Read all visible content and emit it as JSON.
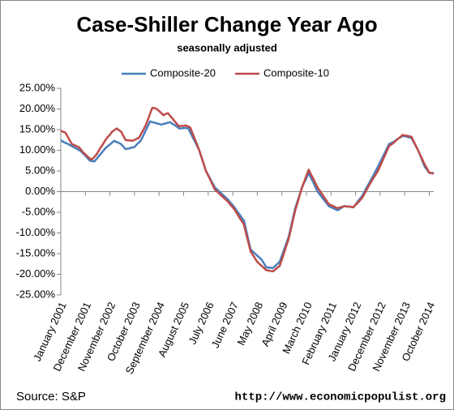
{
  "chart_data": {
    "type": "line",
    "title": "Case-Shiller Change Year Ago",
    "subtitle": "seasonally adjusted",
    "source": "Source: S&P",
    "url": "http://www.economicpopulist.org",
    "legend": "top",
    "grid": false,
    "categories": [
      "January 2001",
      null,
      null,
      null,
      null,
      null,
      null,
      null,
      null,
      null,
      null,
      "December 2001",
      null,
      null,
      null,
      null,
      null,
      null,
      null,
      null,
      null,
      null,
      "November 2002",
      null,
      null,
      null,
      null,
      null,
      null,
      null,
      null,
      null,
      null,
      "October 2003",
      null,
      null,
      null,
      null,
      null,
      null,
      null,
      null,
      null,
      null,
      "September 2004",
      null,
      null,
      null,
      null,
      null,
      null,
      null,
      null,
      null,
      null,
      "August 2005",
      null,
      null,
      null,
      null,
      null,
      null,
      null,
      null,
      null,
      null,
      "July 2006",
      null,
      null,
      null,
      null,
      null,
      null,
      null,
      null,
      null,
      null,
      "June 2007",
      null,
      null,
      null,
      null,
      null,
      null,
      null,
      null,
      null,
      null,
      "May 2008",
      null,
      null,
      null,
      null,
      null,
      null,
      null,
      null,
      null,
      null,
      "April 2009",
      null,
      null,
      null,
      null,
      null,
      null,
      null,
      null,
      null,
      null,
      "March 2010",
      null,
      null,
      null,
      null,
      null,
      null,
      null,
      null,
      null,
      null,
      "February 2011",
      null,
      null,
      null,
      null,
      null,
      null,
      null,
      null,
      null,
      null,
      "January 2012",
      null,
      null,
      null,
      null,
      null,
      null,
      null,
      null,
      null,
      null,
      "December 2012",
      null,
      null,
      null,
      null,
      null,
      null,
      null,
      null,
      null,
      null,
      "November 2013",
      null,
      null,
      null,
      null,
      null,
      null,
      null,
      null,
      null,
      null,
      "October 2014",
      null,
      null
    ],
    "series": [
      {
        "name": "Composite-20",
        "color": "#4a7ebb",
        "values": [
          12.4,
          12.1,
          11.8,
          11.6,
          11.3,
          11.0,
          10.7,
          10.4,
          10.1,
          9.8,
          9.2,
          8.7,
          8.1,
          7.5,
          7.4,
          7.3,
          7.9,
          8.6,
          9.2,
          9.9,
          10.5,
          11.0,
          11.4,
          11.9,
          12.3,
          12.0,
          11.8,
          11.5,
          10.9,
          10.3,
          10.4,
          10.5,
          10.7,
          10.8,
          11.4,
          11.9,
          12.5,
          13.6,
          14.8,
          15.9,
          17.0,
          16.8,
          16.7,
          16.5,
          16.4,
          16.2,
          16.4,
          16.5,
          16.7,
          16.8,
          16.4,
          16.1,
          15.7,
          15.3,
          15.3,
          15.4,
          15.4,
          15.4,
          14.3,
          13.2,
          12.2,
          11.1,
          10.0,
          8.3,
          6.7,
          5.0,
          4.0,
          3.0,
          2.0,
          1.0,
          0.5,
          0.0,
          -0.5,
          -1.0,
          -1.5,
          -2.0,
          -2.7,
          -3.3,
          -4.0,
          -4.8,
          -5.5,
          -6.3,
          -7.0,
          -9.3,
          -11.7,
          -14.0,
          -14.5,
          -15.0,
          -15.5,
          -16.0,
          -16.5,
          -17.4,
          -18.3,
          -18.4,
          -18.4,
          -18.5,
          -18.0,
          -17.5,
          -17.0,
          -15.5,
          -14.0,
          -12.5,
          -11.0,
          -8.7,
          -6.3,
          -4.0,
          -2.3,
          -0.7,
          1.0,
          2.2,
          3.3,
          4.5,
          3.4,
          2.3,
          1.1,
          0.0,
          -0.7,
          -1.4,
          -2.1,
          -2.8,
          -3.5,
          -3.8,
          -4.0,
          -4.3,
          -4.5,
          -4.2,
          -3.8,
          -3.5,
          -3.6,
          -3.6,
          -3.7,
          -3.8,
          -3.1,
          -2.4,
          -1.7,
          -1.0,
          0.0,
          1.0,
          2.0,
          3.0,
          4.0,
          5.0,
          6.0,
          7.1,
          8.2,
          9.3,
          10.4,
          11.5,
          11.8,
          12.0,
          12.4,
          12.8,
          13.1,
          13.5,
          13.4,
          13.3,
          13.1,
          13.0,
          12.0,
          11.0,
          10.0,
          8.7,
          7.3,
          6.0,
          5.3,
          4.5,
          4.5,
          4.5
        ]
      },
      {
        "name": "Composite-10",
        "color": "#be4b48",
        "values": [
          14.7,
          14.5,
          14.3,
          13.4,
          12.4,
          11.5,
          11.3,
          11.0,
          10.8,
          10.2,
          9.5,
          9.0,
          8.5,
          8.0,
          7.8,
          8.4,
          9.0,
          9.9,
          10.8,
          11.6,
          12.5,
          13.2,
          13.8,
          14.5,
          14.9,
          15.3,
          14.9,
          14.5,
          13.5,
          12.5,
          12.4,
          12.4,
          12.3,
          12.5,
          12.8,
          13.0,
          14.0,
          15.0,
          16.0,
          17.4,
          18.9,
          20.3,
          20.2,
          20.0,
          19.5,
          19.0,
          18.5,
          18.8,
          19.0,
          18.3,
          17.7,
          17.0,
          16.4,
          15.8,
          15.9,
          15.9,
          16.0,
          15.8,
          15.5,
          14.1,
          12.8,
          11.4,
          10.0,
          8.3,
          6.7,
          5.0,
          3.9,
          2.8,
          1.6,
          0.5,
          0.0,
          -0.5,
          -1.0,
          -1.5,
          -2.0,
          -2.5,
          -3.2,
          -3.8,
          -4.5,
          -5.4,
          -6.3,
          -7.1,
          -8.0,
          -10.2,
          -12.3,
          -14.5,
          -15.3,
          -16.2,
          -17.0,
          -17.5,
          -18.0,
          -18.5,
          -19.0,
          -19.1,
          -19.2,
          -19.3,
          -18.9,
          -18.4,
          -18.0,
          -16.4,
          -14.8,
          -13.1,
          -11.5,
          -9.2,
          -6.8,
          -4.5,
          -2.7,
          -0.8,
          1.0,
          2.4,
          3.9,
          5.3,
          4.2,
          3.2,
          2.1,
          1.0,
          0.2,
          -0.6,
          -1.4,
          -2.2,
          -3.0,
          -3.3,
          -3.5,
          -3.8,
          -4.0,
          -3.8,
          -3.7,
          -3.5,
          -3.6,
          -3.6,
          -3.7,
          -3.8,
          -3.2,
          -2.7,
          -2.1,
          -1.5,
          -0.5,
          0.5,
          1.5,
          2.4,
          3.3,
          4.1,
          5.0,
          6.2,
          7.4,
          8.6,
          9.8,
          11.0,
          11.4,
          11.8,
          12.3,
          12.8,
          13.2,
          13.7,
          13.6,
          13.5,
          13.4,
          13.3,
          12.2,
          11.1,
          10.0,
          8.8,
          7.7,
          6.5,
          5.6,
          4.6,
          4.5,
          4.3
        ]
      }
    ],
    "ylim": [
      -25,
      25
    ],
    "yticks": [
      {
        "value": 25,
        "label": "25.00%"
      },
      {
        "value": 20,
        "label": "20.00%"
      },
      {
        "value": 15,
        "label": "15.00%"
      },
      {
        "value": 10,
        "label": "10.00%"
      },
      {
        "value": 5,
        "label": "5.00%"
      },
      {
        "value": 0,
        "label": "0.00%"
      },
      {
        "value": -5,
        "label": "-5.00%"
      },
      {
        "value": -10,
        "label": "-10.00%"
      },
      {
        "value": -15,
        "label": "-15.00%"
      },
      {
        "value": -20,
        "label": "-20.00%"
      },
      {
        "value": -25,
        "label": "-25.00%"
      }
    ]
  }
}
